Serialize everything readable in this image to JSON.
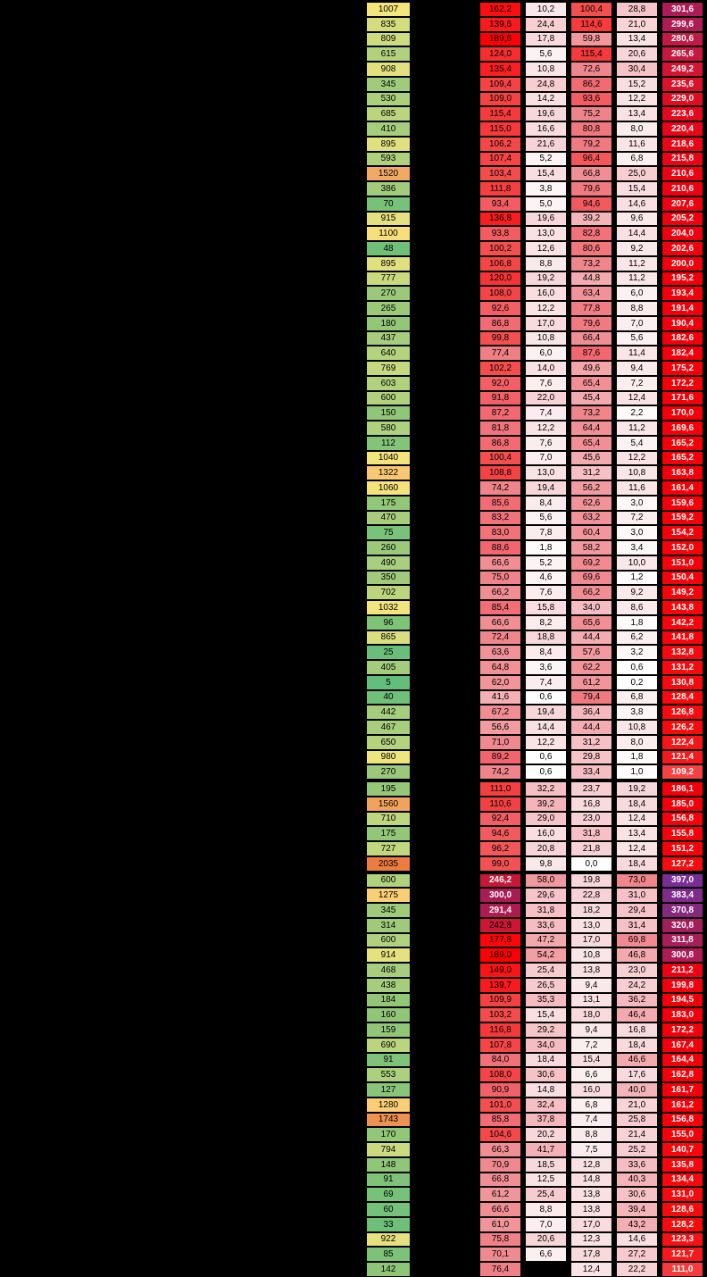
{
  "background": "#000000",
  "chart_data": {
    "type": "table",
    "decimal_separator": ",",
    "num_columns": 6,
    "legend": "column 1 = green-yellow-orange count scale; columns 2-5 = white-to-red value scale; column 6 = red-to-purple total scale; rows split into 3 groups by thick black separators; last row's third column cell is empty (black)",
    "groups": [
      {
        "rows": [
          [
            "1007",
            "162,2",
            "10,2",
            "100,4",
            "28,8",
            "301,6"
          ],
          [
            "835",
            "139,6",
            "24,4",
            "114,6",
            "21,0",
            "299,6"
          ],
          [
            "809",
            "189,6",
            "17,8",
            "59,8",
            "13,4",
            "280,6"
          ],
          [
            "615",
            "124,0",
            "5,6",
            "115,4",
            "20,6",
            "265,6"
          ],
          [
            "908",
            "135,4",
            "10,8",
            "72,6",
            "30,4",
            "249,2"
          ],
          [
            "345",
            "109,4",
            "24,8",
            "86,2",
            "15,2",
            "235,6"
          ],
          [
            "530",
            "109,0",
            "14,2",
            "93,6",
            "12,2",
            "229,0"
          ],
          [
            "685",
            "115,4",
            "19,6",
            "75,2",
            "13,4",
            "223,6"
          ],
          [
            "410",
            "115,0",
            "16,6",
            "80,8",
            "8,0",
            "220,4"
          ],
          [
            "895",
            "106,2",
            "21,6",
            "79,2",
            "11,6",
            "218,6"
          ],
          [
            "593",
            "107,4",
            "5,2",
            "96,4",
            "6,8",
            "215,8"
          ],
          [
            "1520",
            "103,4",
            "15,4",
            "66,8",
            "25,0",
            "210,6"
          ],
          [
            "386",
            "111,8",
            "3,8",
            "79,6",
            "15,4",
            "210,6"
          ],
          [
            "70",
            "93,4",
            "5,0",
            "94,6",
            "14,6",
            "207,6"
          ],
          [
            "915",
            "136,8",
            "19,6",
            "39,2",
            "9,6",
            "205,2"
          ],
          [
            "1100",
            "93,8",
            "13,0",
            "82,8",
            "14,4",
            "204,0"
          ],
          [
            "48",
            "100,2",
            "12,6",
            "80,6",
            "9,2",
            "202,6"
          ],
          [
            "895",
            "106,8",
            "8,8",
            "73,2",
            "11,2",
            "200,0"
          ],
          [
            "777",
            "120,0",
            "19,2",
            "44,8",
            "11,2",
            "195,2"
          ],
          [
            "270",
            "108,0",
            "16,0",
            "63,4",
            "6,0",
            "193,4"
          ],
          [
            "265",
            "92,6",
            "12,2",
            "77,8",
            "8,8",
            "191,4"
          ],
          [
            "180",
            "86,8",
            "17,0",
            "79,6",
            "7,0",
            "190,4"
          ],
          [
            "437",
            "99,8",
            "10,8",
            "66,4",
            "5,6",
            "182,6"
          ],
          [
            "640",
            "77,4",
            "6,0",
            "87,6",
            "11,4",
            "182,4"
          ],
          [
            "769",
            "102,2",
            "14,0",
            "49,6",
            "9,4",
            "175,2"
          ],
          [
            "603",
            "92,0",
            "7,6",
            "65,4",
            "7,2",
            "172,2"
          ],
          [
            "600",
            "91,8",
            "22,0",
            "45,4",
            "12,4",
            "171,6"
          ],
          [
            "150",
            "87,2",
            "7,4",
            "73,2",
            "2,2",
            "170,0"
          ],
          [
            "580",
            "81,8",
            "12,2",
            "64,4",
            "11,2",
            "169,6"
          ],
          [
            "112",
            "86,8",
            "7,6",
            "65,4",
            "5,4",
            "165,2"
          ],
          [
            "1040",
            "100,4",
            "7,0",
            "45,6",
            "12,2",
            "165,2"
          ],
          [
            "1322",
            "108,8",
            "13,0",
            "31,2",
            "10,8",
            "163,8"
          ],
          [
            "1060",
            "74,2",
            "19,4",
            "56,2",
            "11,6",
            "161,4"
          ],
          [
            "175",
            "85,6",
            "8,4",
            "62,6",
            "3,0",
            "159,6"
          ],
          [
            "470",
            "83,2",
            "5,6",
            "63,2",
            "7,2",
            "159,2"
          ],
          [
            "75",
            "83,0",
            "7,8",
            "60,4",
            "3,0",
            "154,2"
          ],
          [
            "260",
            "88,6",
            "1,8",
            "58,2",
            "3,4",
            "152,0"
          ],
          [
            "490",
            "66,6",
            "5,2",
            "69,2",
            "10,0",
            "151,0"
          ],
          [
            "350",
            "75,0",
            "4,6",
            "69,6",
            "1,2",
            "150,4"
          ],
          [
            "702",
            "66,2",
            "7,6",
            "66,2",
            "9,2",
            "149,2"
          ],
          [
            "1032",
            "85,4",
            "15,8",
            "34,0",
            "8,6",
            "143,8"
          ],
          [
            "96",
            "66,6",
            "8,2",
            "65,6",
            "1,8",
            "142,2"
          ],
          [
            "865",
            "72,4",
            "18,8",
            "44,4",
            "6,2",
            "141,8"
          ],
          [
            "25",
            "63,6",
            "8,4",
            "57,6",
            "3,2",
            "132,8"
          ],
          [
            "405",
            "64,8",
            "3,6",
            "62,2",
            "0,6",
            "131,2"
          ],
          [
            "5",
            "62,0",
            "7,4",
            "61,2",
            "0,2",
            "130,8"
          ],
          [
            "40",
            "41,6",
            "0,6",
            "79,4",
            "6,8",
            "128,4"
          ],
          [
            "442",
            "67,2",
            "19,4",
            "36,4",
            "3,8",
            "126,8"
          ],
          [
            "467",
            "56,6",
            "14,4",
            "44,4",
            "10,8",
            "126,2"
          ],
          [
            "650",
            "71,0",
            "12,2",
            "31,2",
            "8,0",
            "122,4"
          ],
          [
            "980",
            "89,2",
            "0,6",
            "29,8",
            "1,8",
            "121,4"
          ],
          [
            "270",
            "74,2",
            "0,6",
            "33,4",
            "1,0",
            "109,2"
          ]
        ]
      },
      {
        "rows": [
          [
            "195",
            "111,0",
            "32,2",
            "23,7",
            "19,2",
            "186,1"
          ],
          [
            "1560",
            "110,6",
            "39,2",
            "16,8",
            "18,4",
            "185,0"
          ],
          [
            "710",
            "92,4",
            "29,0",
            "23,0",
            "12,4",
            "156,8"
          ],
          [
            "175",
            "94,6",
            "16,0",
            "31,8",
            "13,4",
            "155,8"
          ],
          [
            "727",
            "96,2",
            "20,8",
            "21,8",
            "12,4",
            "151,2"
          ],
          [
            "2035",
            "99,0",
            "9,8",
            "0,0",
            "18,4",
            "127,2"
          ]
        ]
      },
      {
        "rows": [
          [
            "600",
            "246,2",
            "58,0",
            "19,8",
            "73,0",
            "397,0"
          ],
          [
            "1275",
            "300,0",
            "29,6",
            "22,8",
            "31,0",
            "383,4"
          ],
          [
            "345",
            "291,4",
            "31,8",
            "18,2",
            "29,4",
            "370,8"
          ],
          [
            "314",
            "242,8",
            "33,6",
            "13,0",
            "31,4",
            "320,8"
          ],
          [
            "600",
            "177,8",
            "47,2",
            "17,0",
            "69,8",
            "311,8"
          ],
          [
            "914",
            "189,0",
            "54,2",
            "10,8",
            "46,8",
            "300,8"
          ],
          [
            "468",
            "149,0",
            "25,4",
            "13,8",
            "23,0",
            "211,2"
          ],
          [
            "438",
            "139,7",
            "26,5",
            "9,4",
            "24,2",
            "199,8"
          ],
          [
            "184",
            "109,9",
            "35,3",
            "13,1",
            "36,2",
            "194,5"
          ],
          [
            "160",
            "103,2",
            "15,4",
            "18,0",
            "46,4",
            "183,0"
          ],
          [
            "159",
            "116,8",
            "29,2",
            "9,4",
            "16,8",
            "172,2"
          ],
          [
            "690",
            "107,8",
            "34,0",
            "7,2",
            "18,4",
            "167,4"
          ],
          [
            "91",
            "84,0",
            "18,4",
            "15,4",
            "46,6",
            "164,4"
          ],
          [
            "553",
            "108,0",
            "30,6",
            "6,6",
            "17,6",
            "162,8"
          ],
          [
            "127",
            "90,9",
            "14,8",
            "16,0",
            "40,0",
            "161,7"
          ],
          [
            "1280",
            "101,0",
            "32,4",
            "6,8",
            "21,0",
            "161,2"
          ],
          [
            "1743",
            "85,8",
            "37,8",
            "7,4",
            "25,8",
            "156,8"
          ],
          [
            "170",
            "104,6",
            "20,2",
            "8,8",
            "21,4",
            "155,0"
          ],
          [
            "794",
            "66,3",
            "41,7",
            "7,5",
            "25,2",
            "140,7"
          ],
          [
            "148",
            "70,9",
            "18,5",
            "12,8",
            "33,6",
            "135,8"
          ],
          [
            "91",
            "66,8",
            "12,5",
            "14,8",
            "40,3",
            "134,4"
          ],
          [
            "69",
            "61,2",
            "25,4",
            "13,8",
            "30,6",
            "131,0"
          ],
          [
            "60",
            "66,6",
            "8,8",
            "13,8",
            "39,4",
            "128,6"
          ],
          [
            "33",
            "61,0",
            "7,0",
            "17,0",
            "43,2",
            "128,2"
          ],
          [
            "922",
            "75,8",
            "20,6",
            "12,3",
            "14,6",
            "123,3"
          ],
          [
            "85",
            "70,1",
            "6,6",
            "17,8",
            "27,2",
            "121,7"
          ],
          [
            "142",
            "76,4",
            null,
            "12,4",
            "22,2",
            "111,0"
          ]
        ]
      }
    ]
  },
  "style": {
    "count_scale": [
      [
        5,
        "#63BE7B"
      ],
      [
        150,
        "#90C677"
      ],
      [
        300,
        "#9ECA7A"
      ],
      [
        500,
        "#A8CF7D"
      ],
      [
        650,
        "#B4D37D"
      ],
      [
        800,
        "#CCDA7E"
      ],
      [
        900,
        "#E2E07E"
      ],
      [
        1000,
        "#F2E67D"
      ],
      [
        1100,
        "#F9DF7A"
      ],
      [
        1300,
        "#FACC74"
      ],
      [
        1550,
        "#F1A45F"
      ],
      [
        1750,
        "#EE9150"
      ],
      [
        2035,
        "#ED7D3E"
      ]
    ],
    "value_scale": [
      [
        0,
        "#FFFFFF"
      ],
      [
        10,
        "#FAE7E9"
      ],
      [
        20,
        "#F8D6D9"
      ],
      [
        30,
        "#F6C3C7"
      ],
      [
        45,
        "#F3ABAF"
      ],
      [
        58,
        "#F2999E"
      ],
      [
        75,
        "#F0838A"
      ],
      [
        90,
        "#F3636B"
      ],
      [
        100,
        "#F4504F"
      ],
      [
        115,
        "#F63A3C"
      ],
      [
        140,
        "#F81A1C"
      ],
      [
        165,
        "#FA0C0E"
      ],
      [
        190,
        "#FB0004"
      ],
      [
        215,
        "#EE0613"
      ],
      [
        245,
        "#C81838"
      ],
      [
        300,
        "#A81C55"
      ]
    ],
    "total_scale": [
      [
        105,
        "#F84B4D"
      ],
      [
        115,
        "#F63133"
      ],
      [
        125,
        "#F60C0E"
      ],
      [
        160,
        "#F40008"
      ],
      [
        195,
        "#F10009"
      ],
      [
        215,
        "#EB0313"
      ],
      [
        236,
        "#DA1229"
      ],
      [
        250,
        "#D11536"
      ],
      [
        266,
        "#C81840"
      ],
      [
        281,
        "#C01A47"
      ],
      [
        300,
        "#AE1C55"
      ],
      [
        321,
        "#A21F5E"
      ],
      [
        350,
        "#922470"
      ],
      [
        371,
        "#85297F"
      ],
      [
        384,
        "#7E2B8B"
      ],
      [
        397,
        "#7A2D96"
      ]
    ],
    "missing_cell": "#000000",
    "grid_color": "#000000",
    "text_dark": "#000000",
    "text_light": "#FFFFFF",
    "light_text_threshold_values": 245
  }
}
